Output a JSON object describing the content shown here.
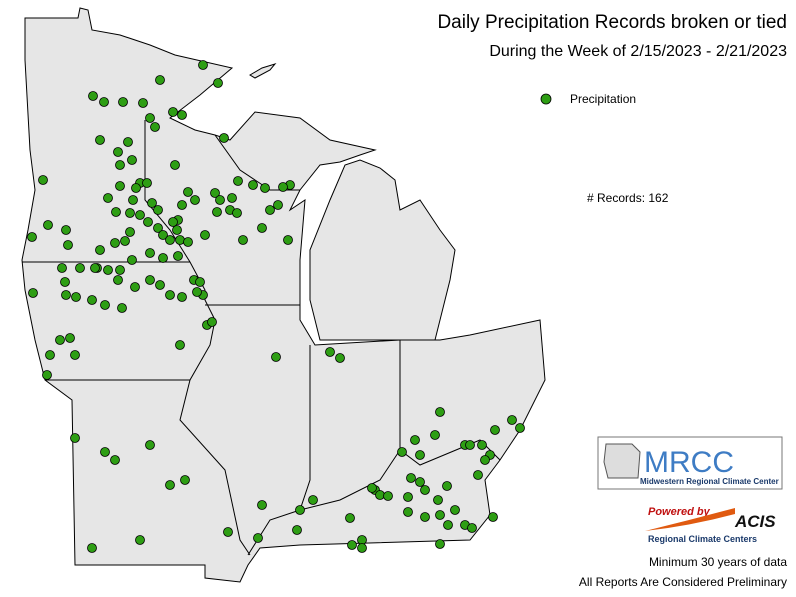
{
  "title": "Daily Precipitation Records broken or tied",
  "subtitle": "During the Week of 2/15/2023 - 2/21/2023",
  "legend": {
    "label": "Precipitation"
  },
  "records": "# Records: 162",
  "logos": {
    "mrcc": {
      "name": "MRCC",
      "full": "Midwestern Regional Climate Center"
    },
    "acis": {
      "powered": "Powered by",
      "name": "ACIS",
      "sub": "Regional Climate Centers"
    }
  },
  "notes": [
    "Minimum 30 years of data",
    "All Reports Are Considered Preliminary"
  ]
}
